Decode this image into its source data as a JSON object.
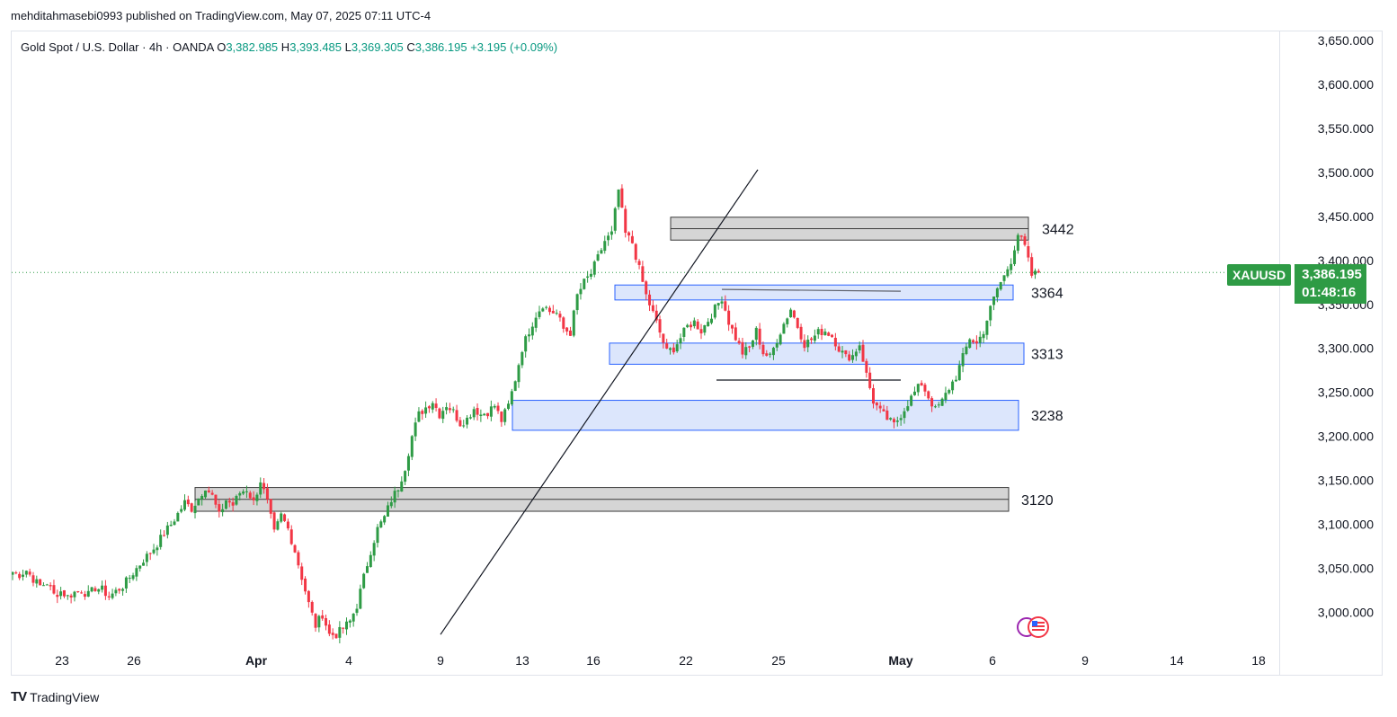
{
  "publisher": "mehditahmasebi0993 published on TradingView.com, May 07, 2025 07:11 UTC-4",
  "legend": {
    "symbol": "Gold Spot / U.S. Dollar · 4h · OANDA",
    "o_label": "O",
    "o": "3,382.985",
    "h_label": "H",
    "h": "3,393.485",
    "l_label": "L",
    "l": "3,369.305",
    "c_label": "C",
    "c": "3,386.195",
    "change": "+3.195 (+0.09%)"
  },
  "price_tag": {
    "symbol": "XAUUSD",
    "price": "3,386.195",
    "countdown": "01:48:16"
  },
  "brand": {
    "logo": "TV",
    "name": "TradingView"
  },
  "colors": {
    "up": "#2e9b45",
    "down": "#f23645",
    "zone_blue_fill": "#d6e2fb",
    "zone_blue_border": "#2962ff",
    "zone_gray_fill": "#d5d5d5",
    "zone_gray_border": "#3b3b3b"
  },
  "chart_data": {
    "type": "candlestick",
    "y_axis": {
      "range": [
        2965,
        3660
      ],
      "ticks": [
        "3,650.000",
        "3,600.000",
        "3,550.000",
        "3,500.000",
        "3,450.000",
        "3,400.000",
        "3,350.000",
        "3,300.000",
        "3,250.000",
        "3,200.000",
        "3,150.000",
        "3,100.000",
        "3,050.000",
        "3,000.000"
      ],
      "tick_values": [
        3650,
        3600,
        3550,
        3500,
        3450,
        3400,
        3350,
        3300,
        3250,
        3200,
        3150,
        3100,
        3050,
        3000
      ]
    },
    "x_axis": {
      "ticks": [
        "23",
        "26",
        "Apr",
        "4",
        "9",
        "13",
        "16",
        "22",
        "25",
        "May",
        "6",
        "9",
        "14",
        "18"
      ]
    },
    "last_price": 3386.195,
    "levels": [
      {
        "label": "3442",
        "low": 3423,
        "high": 3449,
        "style": "gray"
      },
      {
        "label": "3364",
        "low": 3355,
        "high": 3372,
        "style": "blue"
      },
      {
        "label": "3313",
        "low": 3282,
        "high": 3306,
        "style": "blue"
      },
      {
        "label": "3238",
        "low": 3207,
        "high": 3241,
        "style": "blue"
      },
      {
        "label": "3120",
        "low": 3115,
        "high": 3142,
        "style": "gray"
      }
    ],
    "trendline": {
      "from": {
        "date": "Apr 8",
        "price": 2975
      },
      "to": {
        "date": "Apr 22",
        "price": 3503
      }
    },
    "horizontal_lines": [
      {
        "price": 3367,
        "from": "Apr 22",
        "to": "May 1"
      },
      {
        "price": 3264,
        "from": "Apr 22",
        "to": "May 1"
      }
    ],
    "price_path": [
      [
        0,
        3046
      ],
      [
        2,
        3043
      ],
      [
        4,
        3048
      ],
      [
        6,
        3038
      ],
      [
        8,
        3030
      ],
      [
        10,
        3034
      ],
      [
        12,
        3020
      ],
      [
        14,
        3024
      ],
      [
        16,
        3018
      ],
      [
        18,
        3023
      ],
      [
        20,
        3025
      ],
      [
        22,
        3020
      ],
      [
        24,
        3028
      ],
      [
        26,
        3026
      ],
      [
        28,
        3018
      ],
      [
        30,
        3024
      ],
      [
        32,
        3030
      ],
      [
        34,
        3040
      ],
      [
        36,
        3050
      ],
      [
        38,
        3060
      ],
      [
        40,
        3068
      ],
      [
        42,
        3078
      ],
      [
        44,
        3090
      ],
      [
        46,
        3100
      ],
      [
        48,
        3112
      ],
      [
        50,
        3125
      ],
      [
        52,
        3118
      ],
      [
        54,
        3130
      ],
      [
        56,
        3143
      ],
      [
        58,
        3132
      ],
      [
        60,
        3110
      ],
      [
        62,
        3128
      ],
      [
        64,
        3122
      ],
      [
        66,
        3136
      ],
      [
        68,
        3140
      ],
      [
        70,
        3125
      ],
      [
        72,
        3150
      ],
      [
        74,
        3125
      ],
      [
        76,
        3090
      ],
      [
        78,
        3110
      ],
      [
        80,
        3095
      ],
      [
        82,
        3070
      ],
      [
        84,
        3040
      ],
      [
        86,
        3010
      ],
      [
        88,
        2985
      ],
      [
        90,
        2998
      ],
      [
        92,
        2975
      ],
      [
        94,
        2975
      ],
      [
        96,
        2982
      ],
      [
        98,
        2990
      ],
      [
        100,
        3008
      ],
      [
        102,
        3040
      ],
      [
        104,
        3070
      ],
      [
        106,
        3095
      ],
      [
        108,
        3108
      ],
      [
        110,
        3128
      ],
      [
        112,
        3142
      ],
      [
        114,
        3165
      ],
      [
        116,
        3200
      ],
      [
        118,
        3225
      ],
      [
        120,
        3233
      ],
      [
        122,
        3240
      ],
      [
        124,
        3225
      ],
      [
        126,
        3236
      ],
      [
        128,
        3228
      ],
      [
        130,
        3215
      ],
      [
        132,
        3220
      ],
      [
        134,
        3232
      ],
      [
        136,
        3225
      ],
      [
        138,
        3228
      ],
      [
        140,
        3235
      ],
      [
        142,
        3218
      ],
      [
        144,
        3235
      ],
      [
        146,
        3265
      ],
      [
        148,
        3300
      ],
      [
        150,
        3320
      ],
      [
        152,
        3338
      ],
      [
        154,
        3350
      ],
      [
        156,
        3342
      ],
      [
        158,
        3340
      ],
      [
        160,
        3322
      ],
      [
        162,
        3318
      ],
      [
        164,
        3360
      ],
      [
        166,
        3375
      ],
      [
        168,
        3385
      ],
      [
        170,
        3403
      ],
      [
        172,
        3422
      ],
      [
        174,
        3430
      ],
      [
        176,
        3480
      ],
      [
        178,
        3430
      ],
      [
        180,
        3420
      ],
      [
        182,
        3390
      ],
      [
        184,
        3360
      ],
      [
        186,
        3340
      ],
      [
        188,
        3318
      ],
      [
        190,
        3296
      ],
      [
        192,
        3300
      ],
      [
        194,
        3312
      ],
      [
        196,
        3325
      ],
      [
        198,
        3330
      ],
      [
        200,
        3320
      ],
      [
        202,
        3332
      ],
      [
        204,
        3345
      ],
      [
        206,
        3358
      ],
      [
        208,
        3330
      ],
      [
        210,
        3312
      ],
      [
        212,
        3295
      ],
      [
        214,
        3300
      ],
      [
        216,
        3320
      ],
      [
        218,
        3295
      ],
      [
        220,
        3290
      ],
      [
        222,
        3310
      ],
      [
        224,
        3328
      ],
      [
        226,
        3345
      ],
      [
        228,
        3325
      ],
      [
        230,
        3305
      ],
      [
        232,
        3310
      ],
      [
        234,
        3318
      ],
      [
        236,
        3320
      ],
      [
        238,
        3314
      ],
      [
        240,
        3300
      ],
      [
        242,
        3290
      ],
      [
        244,
        3292
      ],
      [
        246,
        3305
      ],
      [
        248,
        3270
      ],
      [
        250,
        3240
      ],
      [
        252,
        3228
      ],
      [
        254,
        3220
      ],
      [
        256,
        3213
      ],
      [
        258,
        3225
      ],
      [
        260,
        3238
      ],
      [
        262,
        3250
      ],
      [
        264,
        3260
      ],
      [
        266,
        3245
      ],
      [
        268,
        3230
      ],
      [
        270,
        3240
      ],
      [
        272,
        3255
      ],
      [
        274,
        3268
      ],
      [
        276,
        3290
      ],
      [
        278,
        3312
      ],
      [
        280,
        3305
      ],
      [
        282,
        3320
      ],
      [
        284,
        3345
      ],
      [
        286,
        3368
      ],
      [
        288,
        3382
      ],
      [
        290,
        3400
      ],
      [
        292,
        3430
      ],
      [
        294,
        3415
      ],
      [
        296,
        3383
      ],
      [
        298,
        3386
      ]
    ],
    "end_date_offset": 298
  }
}
